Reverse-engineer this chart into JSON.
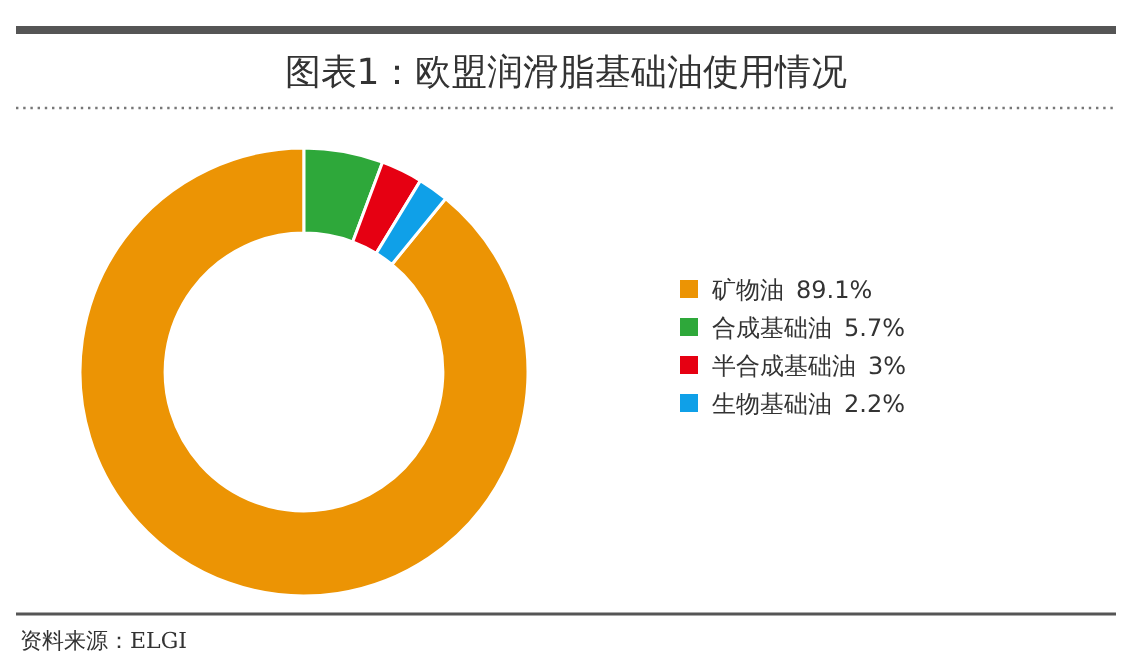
{
  "chart_data": {
    "type": "donut",
    "title": "图表1：欧盟润滑脂基础油使用情况",
    "categories": [
      "矿物油",
      "合成基础油",
      "半合成基础油",
      "生物基础油"
    ],
    "values": [
      89.1,
      5.7,
      3,
      2.2
    ],
    "value_labels": [
      "89.1%",
      "5.7%",
      "3%",
      "2.2%"
    ],
    "colors": [
      "#ec9404",
      "#2ea83a",
      "#e60012",
      "#0fa0e8"
    ],
    "legend": "right",
    "annotations": [
      "资料来源：ELGI"
    ]
  }
}
